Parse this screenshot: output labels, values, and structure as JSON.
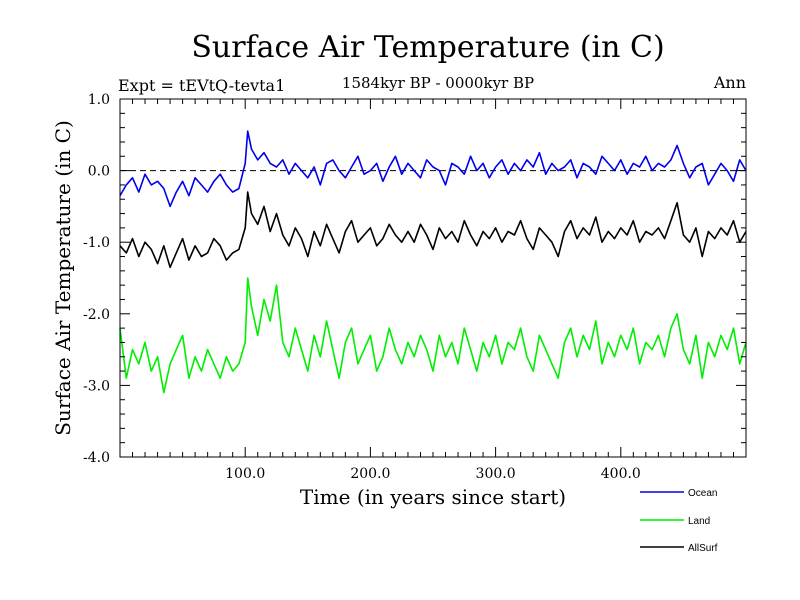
{
  "chart_data": {
    "type": "line",
    "title": "Surface Air Temperature (in C)",
    "subtitle": "1584kyr BP - 0000kyr BP",
    "left_label": "Expt = tEVtQ-tevta1",
    "right_label": "Ann",
    "xlabel": "Time (in years since start)",
    "ylabel": "Surface Air Temperature (in C)",
    "xlim": [
      0,
      500
    ],
    "ylim": [
      -4.0,
      1.0
    ],
    "x_ticks": [
      {
        "value": 100,
        "label": "100.0"
      },
      {
        "value": 200,
        "label": "200.0"
      },
      {
        "value": 300,
        "label": "300.0"
      },
      {
        "value": 400,
        "label": "400.0"
      }
    ],
    "y_ticks": [
      {
        "value": 1.0,
        "label": "1.0"
      },
      {
        "value": 0.0,
        "label": "0.0"
      },
      {
        "value": -1.0,
        "label": "-1.0"
      },
      {
        "value": -2.0,
        "label": "-2.0"
      },
      {
        "value": -3.0,
        "label": "-3.0"
      },
      {
        "value": -4.0,
        "label": "-4.0"
      }
    ],
    "reference_line": {
      "y": 0.0,
      "style": "dashed"
    },
    "legend_position": "bottom-right",
    "series": [
      {
        "name": "Ocean",
        "color": "#0000ee",
        "x": [
          0,
          5,
          10,
          15,
          20,
          25,
          30,
          35,
          40,
          45,
          50,
          55,
          60,
          65,
          70,
          75,
          80,
          85,
          90,
          95,
          100,
          102,
          105,
          110,
          115,
          120,
          125,
          130,
          135,
          140,
          145,
          150,
          155,
          160,
          165,
          170,
          175,
          180,
          185,
          190,
          195,
          200,
          205,
          210,
          215,
          220,
          225,
          230,
          235,
          240,
          245,
          250,
          255,
          260,
          265,
          270,
          275,
          280,
          285,
          290,
          295,
          300,
          305,
          310,
          315,
          320,
          325,
          330,
          335,
          340,
          345,
          350,
          355,
          360,
          365,
          370,
          375,
          380,
          385,
          390,
          395,
          400,
          405,
          410,
          415,
          420,
          425,
          430,
          435,
          440,
          445,
          450,
          455,
          460,
          465,
          470,
          475,
          480,
          485,
          490,
          495,
          500
        ],
        "values": [
          -0.35,
          -0.2,
          -0.1,
          -0.3,
          -0.05,
          -0.2,
          -0.15,
          -0.25,
          -0.5,
          -0.3,
          -0.15,
          -0.35,
          -0.1,
          -0.2,
          -0.3,
          -0.15,
          -0.05,
          -0.2,
          -0.3,
          -0.25,
          0.1,
          0.55,
          0.3,
          0.15,
          0.25,
          0.1,
          0.05,
          0.15,
          -0.05,
          0.1,
          0.0,
          -0.1,
          0.05,
          -0.2,
          0.1,
          0.15,
          0.0,
          -0.1,
          0.05,
          0.2,
          -0.05,
          0.0,
          0.1,
          -0.15,
          0.05,
          0.2,
          -0.05,
          0.1,
          0.0,
          -0.1,
          0.15,
          0.05,
          0.0,
          -0.2,
          0.1,
          0.05,
          -0.05,
          0.2,
          0.0,
          0.1,
          -0.1,
          0.05,
          0.15,
          -0.05,
          0.1,
          0.0,
          0.15,
          0.05,
          0.25,
          -0.05,
          0.1,
          0.0,
          0.05,
          0.15,
          -0.1,
          0.1,
          0.05,
          -0.05,
          0.2,
          0.1,
          0.0,
          0.15,
          -0.05,
          0.1,
          0.05,
          0.2,
          0.0,
          0.1,
          0.05,
          0.15,
          0.35,
          0.1,
          -0.1,
          0.05,
          0.1,
          -0.2,
          -0.05,
          0.1,
          0.0,
          -0.15,
          0.15,
          0.0
        ]
      },
      {
        "name": "Land",
        "color": "#00ee00",
        "x": [
          0,
          5,
          10,
          15,
          20,
          25,
          30,
          35,
          40,
          45,
          50,
          55,
          60,
          65,
          70,
          75,
          80,
          85,
          90,
          95,
          100,
          102,
          105,
          110,
          115,
          120,
          125,
          130,
          135,
          140,
          145,
          150,
          155,
          160,
          165,
          170,
          175,
          180,
          185,
          190,
          195,
          200,
          205,
          210,
          215,
          220,
          225,
          230,
          235,
          240,
          245,
          250,
          255,
          260,
          265,
          270,
          275,
          280,
          285,
          290,
          295,
          300,
          305,
          310,
          315,
          320,
          325,
          330,
          335,
          340,
          345,
          350,
          355,
          360,
          365,
          370,
          375,
          380,
          385,
          390,
          395,
          400,
          405,
          410,
          415,
          420,
          425,
          430,
          435,
          440,
          445,
          450,
          455,
          460,
          465,
          470,
          475,
          480,
          485,
          490,
          495,
          500
        ],
        "values": [
          -2.2,
          -2.9,
          -2.5,
          -2.7,
          -2.4,
          -2.8,
          -2.6,
          -3.1,
          -2.7,
          -2.5,
          -2.3,
          -2.9,
          -2.6,
          -2.8,
          -2.5,
          -2.7,
          -2.9,
          -2.6,
          -2.8,
          -2.7,
          -2.4,
          -1.5,
          -1.9,
          -2.3,
          -1.8,
          -2.1,
          -1.6,
          -2.4,
          -2.6,
          -2.2,
          -2.5,
          -2.8,
          -2.3,
          -2.6,
          -2.1,
          -2.5,
          -2.9,
          -2.4,
          -2.2,
          -2.7,
          -2.5,
          -2.3,
          -2.8,
          -2.6,
          -2.2,
          -2.5,
          -2.7,
          -2.4,
          -2.6,
          -2.3,
          -2.5,
          -2.8,
          -2.3,
          -2.6,
          -2.4,
          -2.7,
          -2.2,
          -2.5,
          -2.8,
          -2.4,
          -2.6,
          -2.3,
          -2.7,
          -2.4,
          -2.5,
          -2.2,
          -2.6,
          -2.8,
          -2.3,
          -2.5,
          -2.7,
          -2.9,
          -2.4,
          -2.2,
          -2.6,
          -2.3,
          -2.5,
          -2.1,
          -2.7,
          -2.4,
          -2.6,
          -2.3,
          -2.5,
          -2.2,
          -2.7,
          -2.4,
          -2.5,
          -2.3,
          -2.6,
          -2.2,
          -2.0,
          -2.5,
          -2.7,
          -2.3,
          -2.9,
          -2.4,
          -2.6,
          -2.3,
          -2.5,
          -2.2,
          -2.7,
          -2.4
        ]
      },
      {
        "name": "AllSurf",
        "color": "#000000",
        "x": [
          0,
          5,
          10,
          15,
          20,
          25,
          30,
          35,
          40,
          45,
          50,
          55,
          60,
          65,
          70,
          75,
          80,
          85,
          90,
          95,
          100,
          102,
          105,
          110,
          115,
          120,
          125,
          130,
          135,
          140,
          145,
          150,
          155,
          160,
          165,
          170,
          175,
          180,
          185,
          190,
          195,
          200,
          205,
          210,
          215,
          220,
          225,
          230,
          235,
          240,
          245,
          250,
          255,
          260,
          265,
          270,
          275,
          280,
          285,
          290,
          295,
          300,
          305,
          310,
          315,
          320,
          325,
          330,
          335,
          340,
          345,
          350,
          355,
          360,
          365,
          370,
          375,
          380,
          385,
          390,
          395,
          400,
          405,
          410,
          415,
          420,
          425,
          430,
          435,
          440,
          445,
          450,
          455,
          460,
          465,
          470,
          475,
          480,
          485,
          490,
          495,
          500
        ],
        "values": [
          -1.05,
          -1.15,
          -0.95,
          -1.2,
          -1.0,
          -1.1,
          -1.3,
          -1.05,
          -1.35,
          -1.15,
          -0.95,
          -1.25,
          -1.05,
          -1.2,
          -1.15,
          -0.95,
          -1.05,
          -1.25,
          -1.15,
          -1.1,
          -0.8,
          -0.3,
          -0.6,
          -0.75,
          -0.5,
          -0.85,
          -0.6,
          -0.9,
          -1.05,
          -0.8,
          -0.95,
          -1.2,
          -0.85,
          -1.05,
          -0.75,
          -0.95,
          -1.15,
          -0.85,
          -0.7,
          -1.0,
          -0.9,
          -0.8,
          -1.05,
          -0.95,
          -0.75,
          -0.9,
          -1.0,
          -0.85,
          -1.0,
          -0.75,
          -0.9,
          -1.1,
          -0.8,
          -0.95,
          -0.85,
          -1.0,
          -0.7,
          -0.9,
          -1.05,
          -0.85,
          -0.95,
          -0.8,
          -1.0,
          -0.85,
          -0.9,
          -0.7,
          -0.95,
          -1.1,
          -0.8,
          -0.9,
          -1.0,
          -1.2,
          -0.85,
          -0.7,
          -0.95,
          -0.8,
          -0.9,
          -0.65,
          -1.0,
          -0.85,
          -0.95,
          -0.8,
          -0.9,
          -0.7,
          -1.0,
          -0.85,
          -0.9,
          -0.8,
          -0.95,
          -0.7,
          -0.45,
          -0.9,
          -1.0,
          -0.8,
          -1.2,
          -0.85,
          -0.95,
          -0.8,
          -0.9,
          -0.7,
          -1.0,
          -0.85
        ]
      }
    ]
  }
}
